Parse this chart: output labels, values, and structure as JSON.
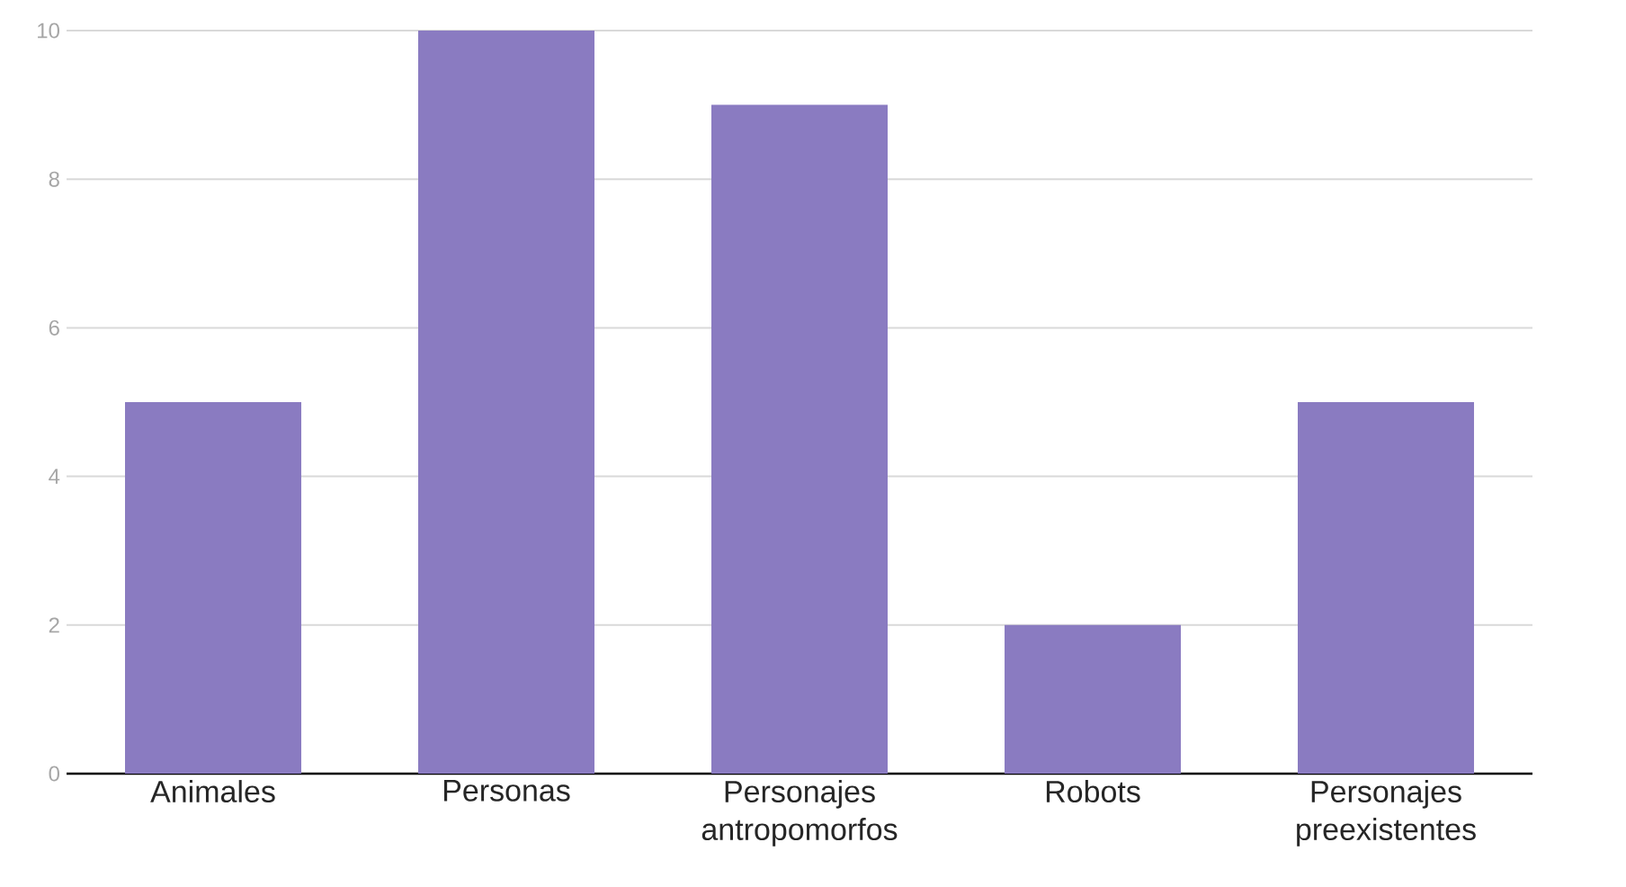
{
  "chart_data": {
    "type": "bar",
    "categories": [
      "Animales",
      "Personas",
      "Personajes antropomorfos",
      "Robots",
      "Personajes preexistentes"
    ],
    "values": [
      5,
      10,
      9,
      2,
      5
    ],
    "color": "#8a7bc1",
    "ylim": [
      0,
      10
    ],
    "yticks": [
      0,
      2,
      4,
      6,
      8,
      10
    ],
    "grid": "y"
  }
}
